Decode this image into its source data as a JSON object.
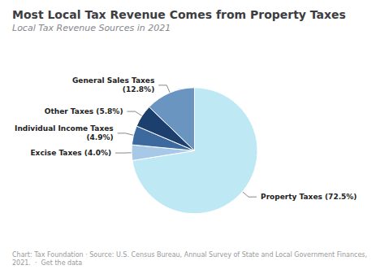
{
  "chart_data": {
    "type": "pie",
    "title": "Most Local Tax Revenue Comes from Property Taxes",
    "subtitle": "Local Tax Revenue Sources in 2021",
    "footnote": "Chart: Tax Foundation · Source: U.S. Census Bureau, Annual Survey of State and Local Government Finances, 2021.  ·  Get the data",
    "categories": [
      "Property Taxes",
      "Excise Taxes",
      "Individual Income Taxes",
      "Other Taxes",
      "General Sales Taxes"
    ],
    "values": [
      72.5,
      4.0,
      4.9,
      5.8,
      12.8
    ],
    "value_labels": [
      "Property Taxes (72.5%)",
      "Excise Taxes (4.0%)",
      "Individual Income Taxes\n(4.9%)",
      "Other Taxes (5.8%)",
      "General Sales Taxes\n(12.8%)"
    ],
    "colors": [
      "#BFE8F5",
      "#A8C8E8",
      "#3D6A9E",
      "#1C3F6E",
      "#6A95C0"
    ],
    "legend": false
  }
}
